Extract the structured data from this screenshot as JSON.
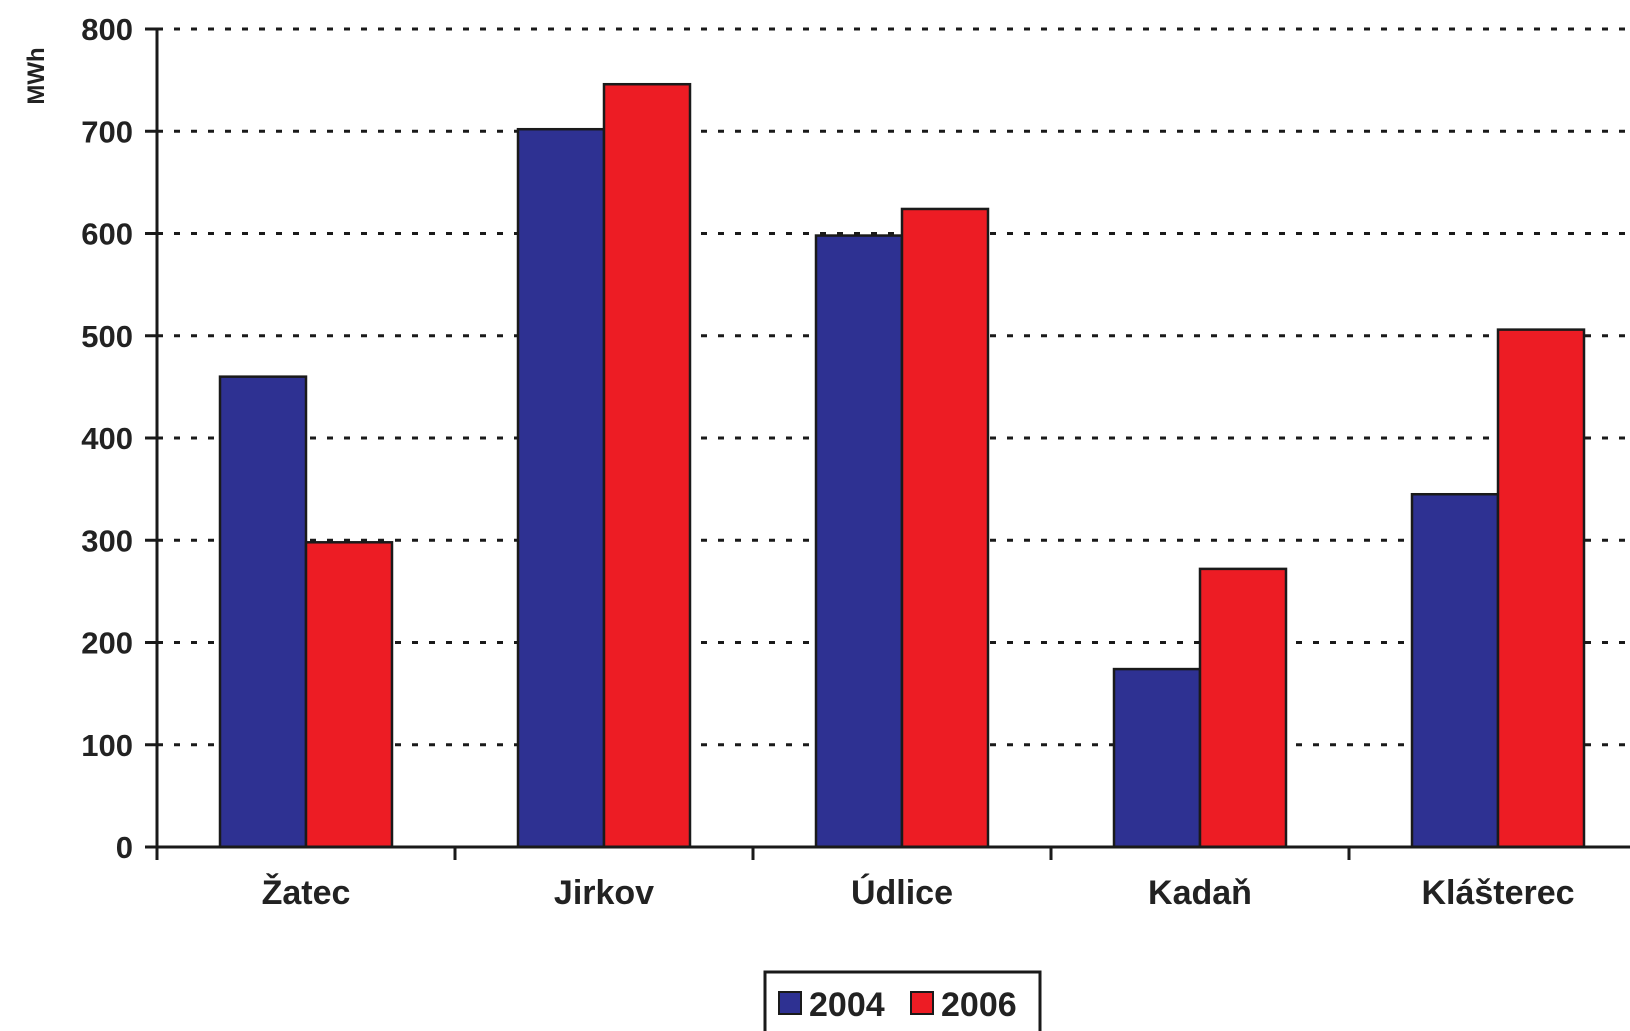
{
  "chart_data": {
    "type": "bar",
    "title": "",
    "xlabel": "",
    "ylabel": "MWh",
    "categories": [
      "Žatec",
      "Jirkov",
      "Údlice",
      "Kadaň",
      "Klášterec"
    ],
    "series": [
      {
        "name": "2004",
        "color": "#2e3192",
        "values": [
          460,
          702,
          598,
          174,
          345
        ]
      },
      {
        "name": "2006",
        "color": "#ed1c24",
        "values": [
          298,
          746,
          624,
          272,
          506
        ]
      }
    ],
    "ylim": [
      0,
      800
    ],
    "yticks": [
      "0",
      "100",
      "200",
      "300",
      "400",
      "500",
      "600",
      "700",
      "800"
    ],
    "grid": true,
    "legend_position": "bottom-center"
  }
}
